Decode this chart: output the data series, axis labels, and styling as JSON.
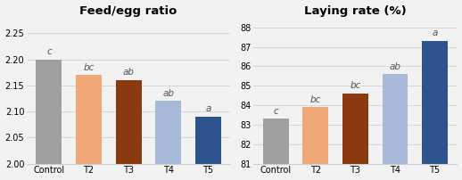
{
  "left_title": "Feed/egg ratio",
  "right_title": "Laying rate (%)",
  "categories": [
    "Control",
    "T2",
    "T3",
    "T4",
    "T5"
  ],
  "left_values": [
    2.2,
    2.17,
    2.16,
    2.12,
    2.09
  ],
  "right_values": [
    83.3,
    83.9,
    84.6,
    85.6,
    87.3
  ],
  "left_labels": [
    "c",
    "bc",
    "ab",
    "ab",
    "a"
  ],
  "right_labels": [
    "c",
    "bc",
    "bc",
    "ab",
    "a"
  ],
  "bar_colors": [
    "#a0a0a0",
    "#f0a878",
    "#8b3a0f",
    "#a8b8d8",
    "#2e5490"
  ],
  "left_ylim": [
    2.0,
    2.28
  ],
  "right_ylim": [
    81,
    88.5
  ],
  "left_yticks": [
    2.0,
    2.05,
    2.1,
    2.15,
    2.2,
    2.25
  ],
  "right_yticks": [
    81,
    82,
    83,
    84,
    85,
    86,
    87,
    88
  ],
  "background_color": "#f2f2f2",
  "label_fontsize": 7.5,
  "tick_fontsize": 7,
  "title_fontsize": 9.5
}
